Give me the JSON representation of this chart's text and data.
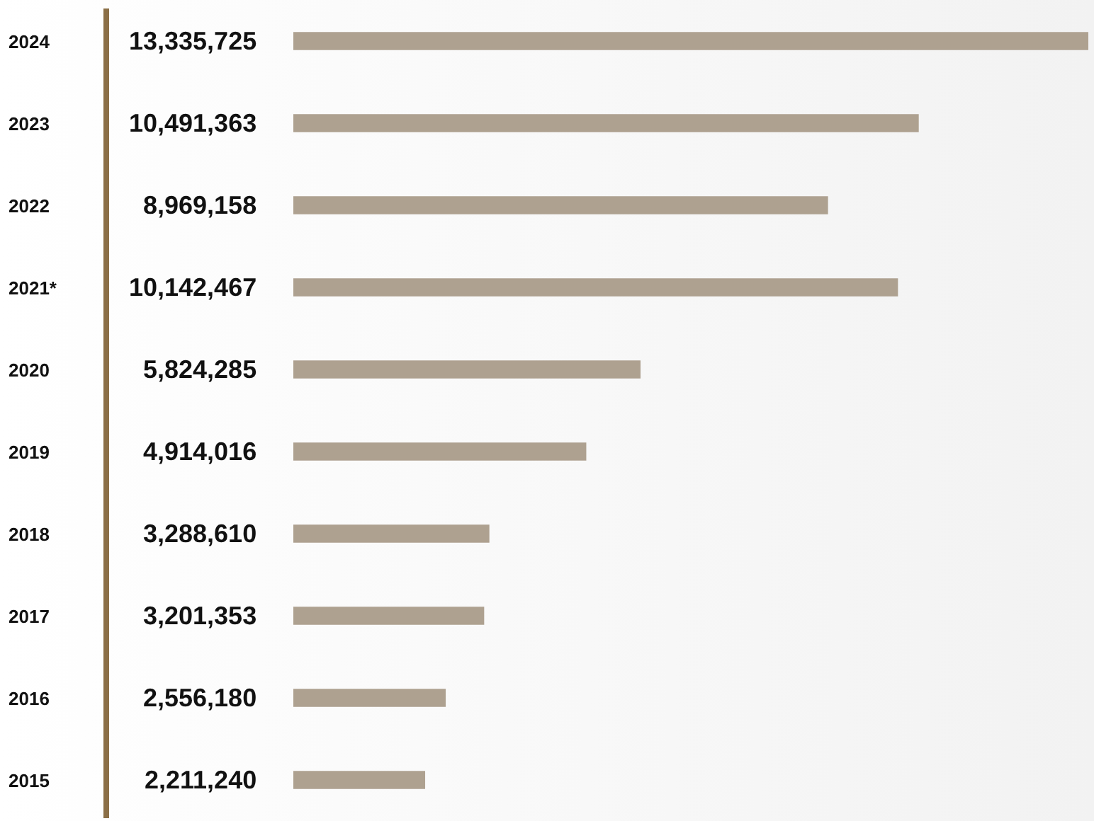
{
  "chart_data": {
    "type": "bar",
    "orientation": "horizontal",
    "categories": [
      "2024",
      "2023",
      "2022",
      "2021*",
      "2020",
      "2019",
      "2018",
      "2017",
      "2016",
      "2015"
    ],
    "values": [
      13335725,
      10491363,
      8969158,
      10142467,
      5824285,
      4914016,
      3288610,
      3201353,
      2556180,
      2211240
    ],
    "value_labels": [
      "13,335,725",
      "10,491,363",
      "8,969,158",
      "10,142,467",
      "5,824,285",
      "4,914,016",
      "3,288,610",
      "3,201,353",
      "2,556,180",
      "2,211,240"
    ],
    "color": "#aea190",
    "tick_labels": "y",
    "grid": false
  }
}
